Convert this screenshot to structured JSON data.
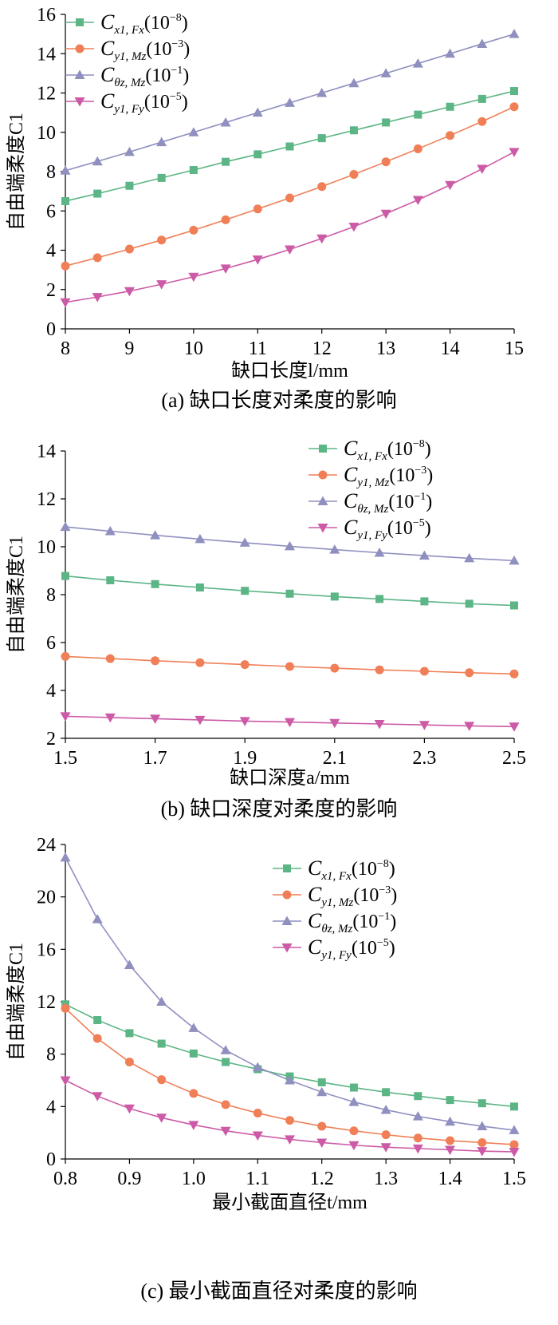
{
  "colors": {
    "Cx1": "#5cb585",
    "Cy1Mz": "#f07f57",
    "Ctheta": "#8f8fc0",
    "Cy1Fy": "#cc5aa6"
  },
  "chart_data": [
    {
      "type": "line",
      "caption": "(a) 缺口长度对柔度的影响",
      "xlabel": "缺口长度l/mm",
      "ylabel": "自由端柔度C1",
      "xlim": [
        8,
        15
      ],
      "ylim": [
        0,
        16
      ],
      "xticks": [
        8,
        9,
        10,
        11,
        12,
        13,
        14,
        15
      ],
      "yticks": [
        0,
        2,
        4,
        6,
        8,
        10,
        12,
        14,
        16
      ],
      "x": [
        8,
        8.5,
        9,
        9.5,
        10,
        10.5,
        11,
        11.5,
        12,
        12.5,
        13,
        13.5,
        14,
        14.5,
        15
      ],
      "legend_position": "top-left",
      "grid": false,
      "series": [
        {
          "name": "Cx1, Fx(10^-8)",
          "key": "Cx1",
          "marker": "square",
          "values": [
            6.5,
            6.88,
            7.28,
            7.68,
            8.08,
            8.5,
            8.88,
            9.28,
            9.7,
            10.1,
            10.5,
            10.9,
            11.3,
            11.7,
            12.1
          ]
        },
        {
          "name": "Cy1, Mz(10^-3)",
          "key": "Cy1Mz",
          "marker": "circle",
          "values": [
            3.2,
            3.62,
            4.06,
            4.52,
            5.02,
            5.55,
            6.1,
            6.66,
            7.24,
            7.86,
            8.5,
            9.16,
            9.84,
            10.55,
            11.3
          ]
        },
        {
          "name": "Cθz, Mz(10^-1)",
          "key": "Ctheta",
          "marker": "triangle-up",
          "values": [
            8.05,
            8.52,
            9.0,
            9.5,
            10.0,
            10.5,
            11.0,
            11.5,
            12.0,
            12.5,
            13.0,
            13.5,
            14.0,
            14.5,
            15.0
          ]
        },
        {
          "name": "Cy1, Fy(10^-5)",
          "key": "Cy1Fy",
          "marker": "triangle-down",
          "values": [
            1.35,
            1.62,
            1.92,
            2.27,
            2.65,
            3.07,
            3.53,
            4.04,
            4.6,
            5.2,
            5.86,
            6.56,
            7.32,
            8.14,
            9.0
          ]
        }
      ]
    },
    {
      "type": "line",
      "caption": "(b) 缺口深度对柔度的影响",
      "xlabel": "缺口深度a/mm",
      "ylabel": "自由端柔度C1",
      "xlim": [
        1.5,
        2.5
      ],
      "ylim": [
        2,
        14
      ],
      "xticks": [
        1.5,
        1.7,
        1.9,
        2.1,
        2.3,
        2.5
      ],
      "yticks": [
        2,
        4,
        6,
        8,
        10,
        12,
        14
      ],
      "x": [
        1.5,
        1.6,
        1.7,
        1.8,
        1.9,
        2.0,
        2.1,
        2.2,
        2.3,
        2.4,
        2.5
      ],
      "legend_position": "top-right",
      "grid": false,
      "series": [
        {
          "name": "Cx1, Fx(10^-8)",
          "key": "Cx1",
          "marker": "square",
          "values": [
            8.78,
            8.6,
            8.44,
            8.3,
            8.16,
            8.04,
            7.92,
            7.82,
            7.72,
            7.62,
            7.55
          ]
        },
        {
          "name": "Cy1, Mz(10^-3)",
          "key": "Cy1Mz",
          "marker": "circle",
          "values": [
            5.42,
            5.33,
            5.24,
            5.16,
            5.08,
            5.0,
            4.93,
            4.86,
            4.8,
            4.74,
            4.69
          ]
        },
        {
          "name": "Cθz, Mz(10^-1)",
          "key": "Ctheta",
          "marker": "triangle-up",
          "values": [
            10.83,
            10.65,
            10.48,
            10.32,
            10.17,
            10.02,
            9.88,
            9.75,
            9.63,
            9.52,
            9.42
          ]
        },
        {
          "name": "Cy1, Fy(10^-5)",
          "key": "Cy1Fy",
          "marker": "triangle-down",
          "values": [
            2.92,
            2.87,
            2.82,
            2.77,
            2.72,
            2.68,
            2.64,
            2.6,
            2.56,
            2.52,
            2.49
          ]
        }
      ]
    },
    {
      "type": "line",
      "caption": "(c) 最小截面直径对柔度的影响",
      "xlabel": "最小截面直径t/mm",
      "ylabel": "自由端柔度C1",
      "xlim": [
        0.8,
        1.5
      ],
      "ylim": [
        0,
        24
      ],
      "xticks": [
        0.8,
        0.9,
        1.0,
        1.1,
        1.2,
        1.3,
        1.4,
        1.5
      ],
      "yticks": [
        0,
        4,
        8,
        12,
        16,
        20,
        24
      ],
      "x": [
        0.8,
        0.85,
        0.9,
        0.95,
        1.0,
        1.05,
        1.1,
        1.15,
        1.2,
        1.25,
        1.3,
        1.35,
        1.4,
        1.45,
        1.5
      ],
      "legend_position": "top-right",
      "grid": false,
      "series": [
        {
          "name": "Cx1, Fx(10^-8)",
          "key": "Cx1",
          "marker": "square",
          "values": [
            11.8,
            10.6,
            9.6,
            8.8,
            8.05,
            7.4,
            6.85,
            6.3,
            5.85,
            5.45,
            5.1,
            4.8,
            4.5,
            4.25,
            4.0
          ]
        },
        {
          "name": "Cy1, Mz(10^-3)",
          "key": "Cy1Mz",
          "marker": "circle",
          "values": [
            11.5,
            9.2,
            7.4,
            6.05,
            5.0,
            4.15,
            3.5,
            2.95,
            2.5,
            2.15,
            1.85,
            1.6,
            1.4,
            1.25,
            1.1
          ]
        },
        {
          "name": "Cθz, Mz(10^-1)",
          "key": "Ctheta",
          "marker": "triangle-up",
          "values": [
            23.0,
            18.3,
            14.8,
            12.0,
            10.0,
            8.3,
            7.0,
            6.0,
            5.1,
            4.35,
            3.75,
            3.25,
            2.85,
            2.5,
            2.2
          ]
        },
        {
          "name": "Cy1, Fy(10^-5)",
          "key": "Cy1Fy",
          "marker": "triangle-down",
          "values": [
            6.0,
            4.8,
            3.85,
            3.15,
            2.6,
            2.15,
            1.8,
            1.5,
            1.25,
            1.05,
            0.9,
            0.8,
            0.7,
            0.6,
            0.55
          ]
        }
      ]
    }
  ]
}
